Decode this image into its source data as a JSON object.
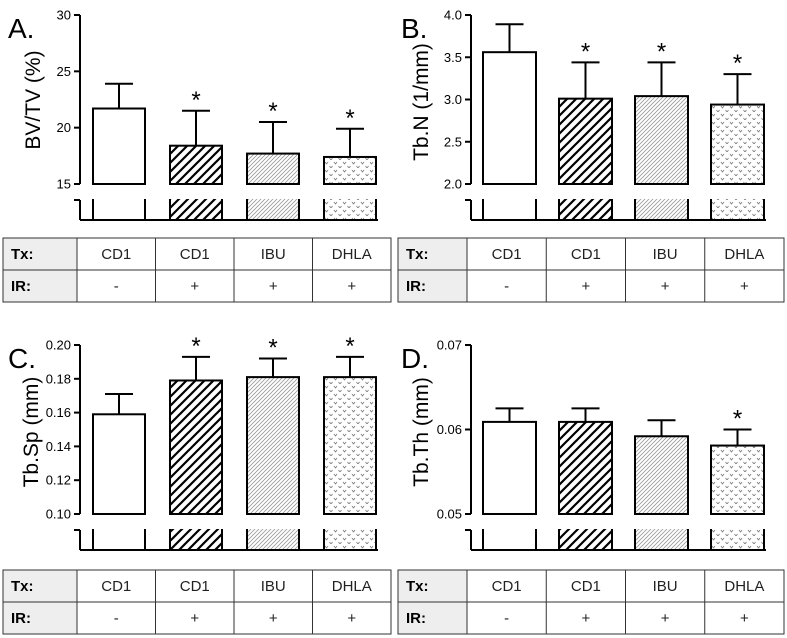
{
  "chart_data": [
    {
      "panel": "A.",
      "type": "bar",
      "ylabel": "BV/TV (%)",
      "ylim": [
        15,
        30
      ],
      "yticks": [
        "15",
        "20",
        "25",
        "30"
      ],
      "values": [
        21.7,
        18.4,
        17.7,
        17.4
      ],
      "errors": [
        2.2,
        3.1,
        2.8,
        2.5
      ],
      "significant": [
        "",
        "*",
        "*",
        "*"
      ],
      "table": {
        "tx_label": "Tx:",
        "ir_label": "IR:",
        "tx": [
          "CD1",
          "CD1",
          "IBU",
          "DHLA"
        ],
        "ir": [
          "-",
          "+",
          "+",
          "+"
        ]
      }
    },
    {
      "panel": "B.",
      "type": "bar",
      "ylabel": "Tb.N (1/mm)",
      "ylim": [
        2.0,
        4.0
      ],
      "yticks": [
        "2.0",
        "2.5",
        "3.0",
        "3.5",
        "4.0"
      ],
      "values": [
        3.56,
        3.01,
        3.04,
        2.94
      ],
      "errors": [
        0.33,
        0.43,
        0.4,
        0.36
      ],
      "significant": [
        "",
        "*",
        "*",
        "*"
      ],
      "table": {
        "tx_label": "Tx:",
        "ir_label": "IR:",
        "tx": [
          "CD1",
          "CD1",
          "IBU",
          "DHLA"
        ],
        "ir": [
          "-",
          "+",
          "+",
          "+"
        ]
      }
    },
    {
      "panel": "C.",
      "type": "bar",
      "ylabel": "Tb.Sp (mm)",
      "ylim": [
        0.1,
        0.2
      ],
      "yticks": [
        "0.10",
        "0.12",
        "0.14",
        "0.16",
        "0.18",
        "0.20"
      ],
      "values": [
        0.159,
        0.179,
        0.181,
        0.181
      ],
      "errors": [
        0.012,
        0.014,
        0.011,
        0.012
      ],
      "significant": [
        "",
        "*",
        "*",
        "*"
      ],
      "table": {
        "tx_label": "Tx:",
        "ir_label": "IR:",
        "tx": [
          "CD1",
          "CD1",
          "IBU",
          "DHLA"
        ],
        "ir": [
          "-",
          "+",
          "+",
          "+"
        ]
      }
    },
    {
      "panel": "D.",
      "type": "bar",
      "ylabel": "Tb.Th (mm)",
      "ylim": [
        0.05,
        0.07
      ],
      "yticks": [
        "0.05",
        "0.06",
        "0.07"
      ],
      "values": [
        0.0609,
        0.0609,
        0.0592,
        0.0581
      ],
      "errors": [
        0.0016,
        0.0016,
        0.0019,
        0.0019
      ],
      "significant": [
        "",
        "",
        "",
        "*"
      ],
      "table": {
        "tx_label": "Tx:",
        "ir_label": "IR:",
        "tx": [
          "CD1",
          "CD1",
          "IBU",
          "DHLA"
        ],
        "ir": [
          "-",
          "+",
          "+",
          "+"
        ]
      }
    }
  ]
}
